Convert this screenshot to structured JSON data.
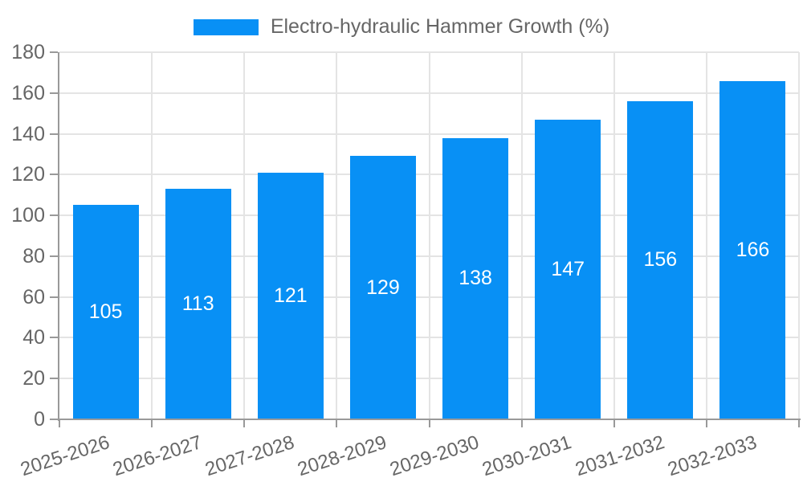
{
  "chart_data": {
    "type": "bar",
    "title": "",
    "xlabel": "",
    "ylabel": "",
    "categories": [
      "2025-2026",
      "2026-2027",
      "2027-2028",
      "2028-2029",
      "2029-2030",
      "2030-2031",
      "2031-2032",
      "2032-2033"
    ],
    "series": [
      {
        "name": "Electro-hydraulic Hammer Growth (%)",
        "values": [
          105,
          113,
          121,
          129,
          138,
          147,
          156,
          166
        ]
      }
    ],
    "ylim": [
      0,
      180
    ],
    "yticks": [
      0,
      20,
      40,
      60,
      80,
      100,
      120,
      140,
      160,
      180
    ],
    "grid": true,
    "legend_position": "top-center",
    "value_label_position": "inside-center"
  },
  "colors": {
    "bar": "#0890f5",
    "grid": "#e4e4e4",
    "axis_line": "#999999",
    "tick_label": "#666666",
    "legend_text": "#666666",
    "value_label": "#ffffff",
    "background": "#ffffff"
  }
}
